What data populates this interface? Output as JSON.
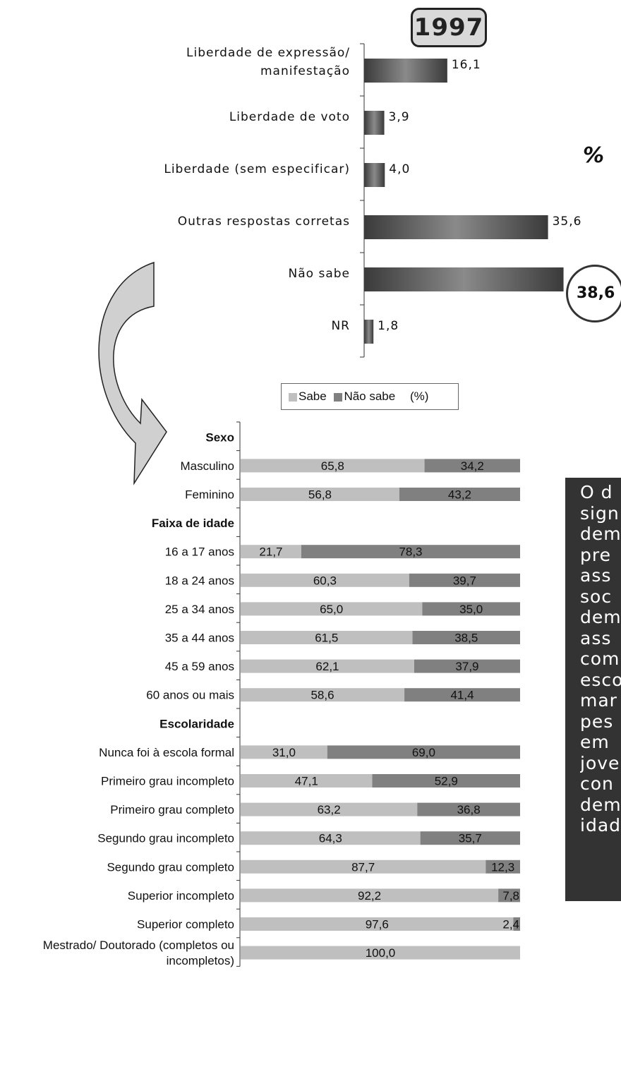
{
  "badge": {
    "year": "1997",
    "percent_sign": "%",
    "highlight_value": "38,6"
  },
  "note_text": "O d\nsign\ndem\npre\nass\nsoc\ndem\nass\ncom\nesco\nmar\npes\nem \njove\ncon\ndem\nidad",
  "colors": {
    "sabe": "#bfbfbf",
    "nao_sabe": "#808080",
    "bar_dark": "#3a3a3a",
    "bar_light": "#8a8a8a",
    "note_bg": "#333333"
  },
  "chart_data": [
    {
      "type": "bar",
      "orientation": "horizontal",
      "title": "1997",
      "categories": [
        [
          "Liberdade de expressão/",
          "manifestação"
        ],
        [
          "Liberdade de voto"
        ],
        [
          "Liberdade (sem especificar)"
        ],
        [
          "Outras respostas corretas"
        ],
        [
          "Não sabe"
        ],
        [
          "NR"
        ]
      ],
      "values": [
        16.1,
        3.9,
        4.0,
        35.6,
        38.6,
        1.8
      ],
      "value_labels": [
        "16,1",
        "3,9",
        "4,0",
        "35,6",
        "38,6",
        "1,8"
      ],
      "unit": "%",
      "xlim": [
        0,
        40
      ]
    },
    {
      "type": "bar",
      "orientation": "horizontal",
      "stacked": true,
      "legend": {
        "labels": [
          "Sabe",
          "Não sabe"
        ],
        "unit": "(%)",
        "position": "top"
      },
      "series_names": [
        "Sabe",
        "Não sabe"
      ],
      "rows": [
        {
          "label": [
            "Sexo"
          ],
          "header": true
        },
        {
          "label": [
            "Masculino"
          ],
          "values": [
            65.8,
            34.2
          ],
          "value_labels": [
            "65,8",
            "34,2"
          ]
        },
        {
          "label": [
            "Feminino"
          ],
          "values": [
            56.8,
            43.2
          ],
          "value_labels": [
            "56,8",
            "43,2"
          ]
        },
        {
          "label": [
            "Faixa de idade"
          ],
          "header": true
        },
        {
          "label": [
            "16 a 17 anos"
          ],
          "values": [
            21.7,
            78.3
          ],
          "value_labels": [
            "21,7",
            "78,3"
          ]
        },
        {
          "label": [
            "18 a 24 anos"
          ],
          "values": [
            60.3,
            39.7
          ],
          "value_labels": [
            "60,3",
            "39,7"
          ]
        },
        {
          "label": [
            "25 a 34 anos"
          ],
          "values": [
            65.0,
            35.0
          ],
          "value_labels": [
            "65,0",
            "35,0"
          ]
        },
        {
          "label": [
            "35 a 44 anos"
          ],
          "values": [
            61.5,
            38.5
          ],
          "value_labels": [
            "61,5",
            "38,5"
          ]
        },
        {
          "label": [
            "45 a 59 anos"
          ],
          "values": [
            62.1,
            37.9
          ],
          "value_labels": [
            "62,1",
            "37,9"
          ]
        },
        {
          "label": [
            "60 anos ou mais"
          ],
          "values": [
            58.6,
            41.4
          ],
          "value_labels": [
            "58,6",
            "41,4"
          ]
        },
        {
          "label": [
            "Escolaridade"
          ],
          "header": true
        },
        {
          "label": [
            "Nunca foi à escola formal"
          ],
          "values": [
            31.0,
            69.0
          ],
          "value_labels": [
            "31,0",
            "69,0"
          ]
        },
        {
          "label": [
            "Primeiro grau incompleto"
          ],
          "values": [
            47.1,
            52.9
          ],
          "value_labels": [
            "47,1",
            "52,9"
          ]
        },
        {
          "label": [
            "Primeiro grau completo"
          ],
          "values": [
            63.2,
            36.8
          ],
          "value_labels": [
            "63,2",
            "36,8"
          ]
        },
        {
          "label": [
            "Segundo grau incompleto"
          ],
          "values": [
            64.3,
            35.7
          ],
          "value_labels": [
            "64,3",
            "35,7"
          ]
        },
        {
          "label": [
            "Segundo grau completo"
          ],
          "values": [
            87.7,
            12.3
          ],
          "value_labels": [
            "87,7",
            "12,3"
          ]
        },
        {
          "label": [
            "Superior incompleto"
          ],
          "values": [
            92.2,
            7.8
          ],
          "value_labels": [
            "92,2",
            "7,8"
          ]
        },
        {
          "label": [
            "Superior completo"
          ],
          "values": [
            97.6,
            2.4
          ],
          "value_labels": [
            "97,6",
            "2,4"
          ]
        },
        {
          "label": [
            "Mestrado/ Doutorado (completos ou",
            "incompletos)"
          ],
          "values": [
            100.0,
            0.0
          ],
          "value_labels": [
            "100,0",
            ""
          ]
        }
      ],
      "xlim": [
        0,
        100
      ]
    }
  ]
}
